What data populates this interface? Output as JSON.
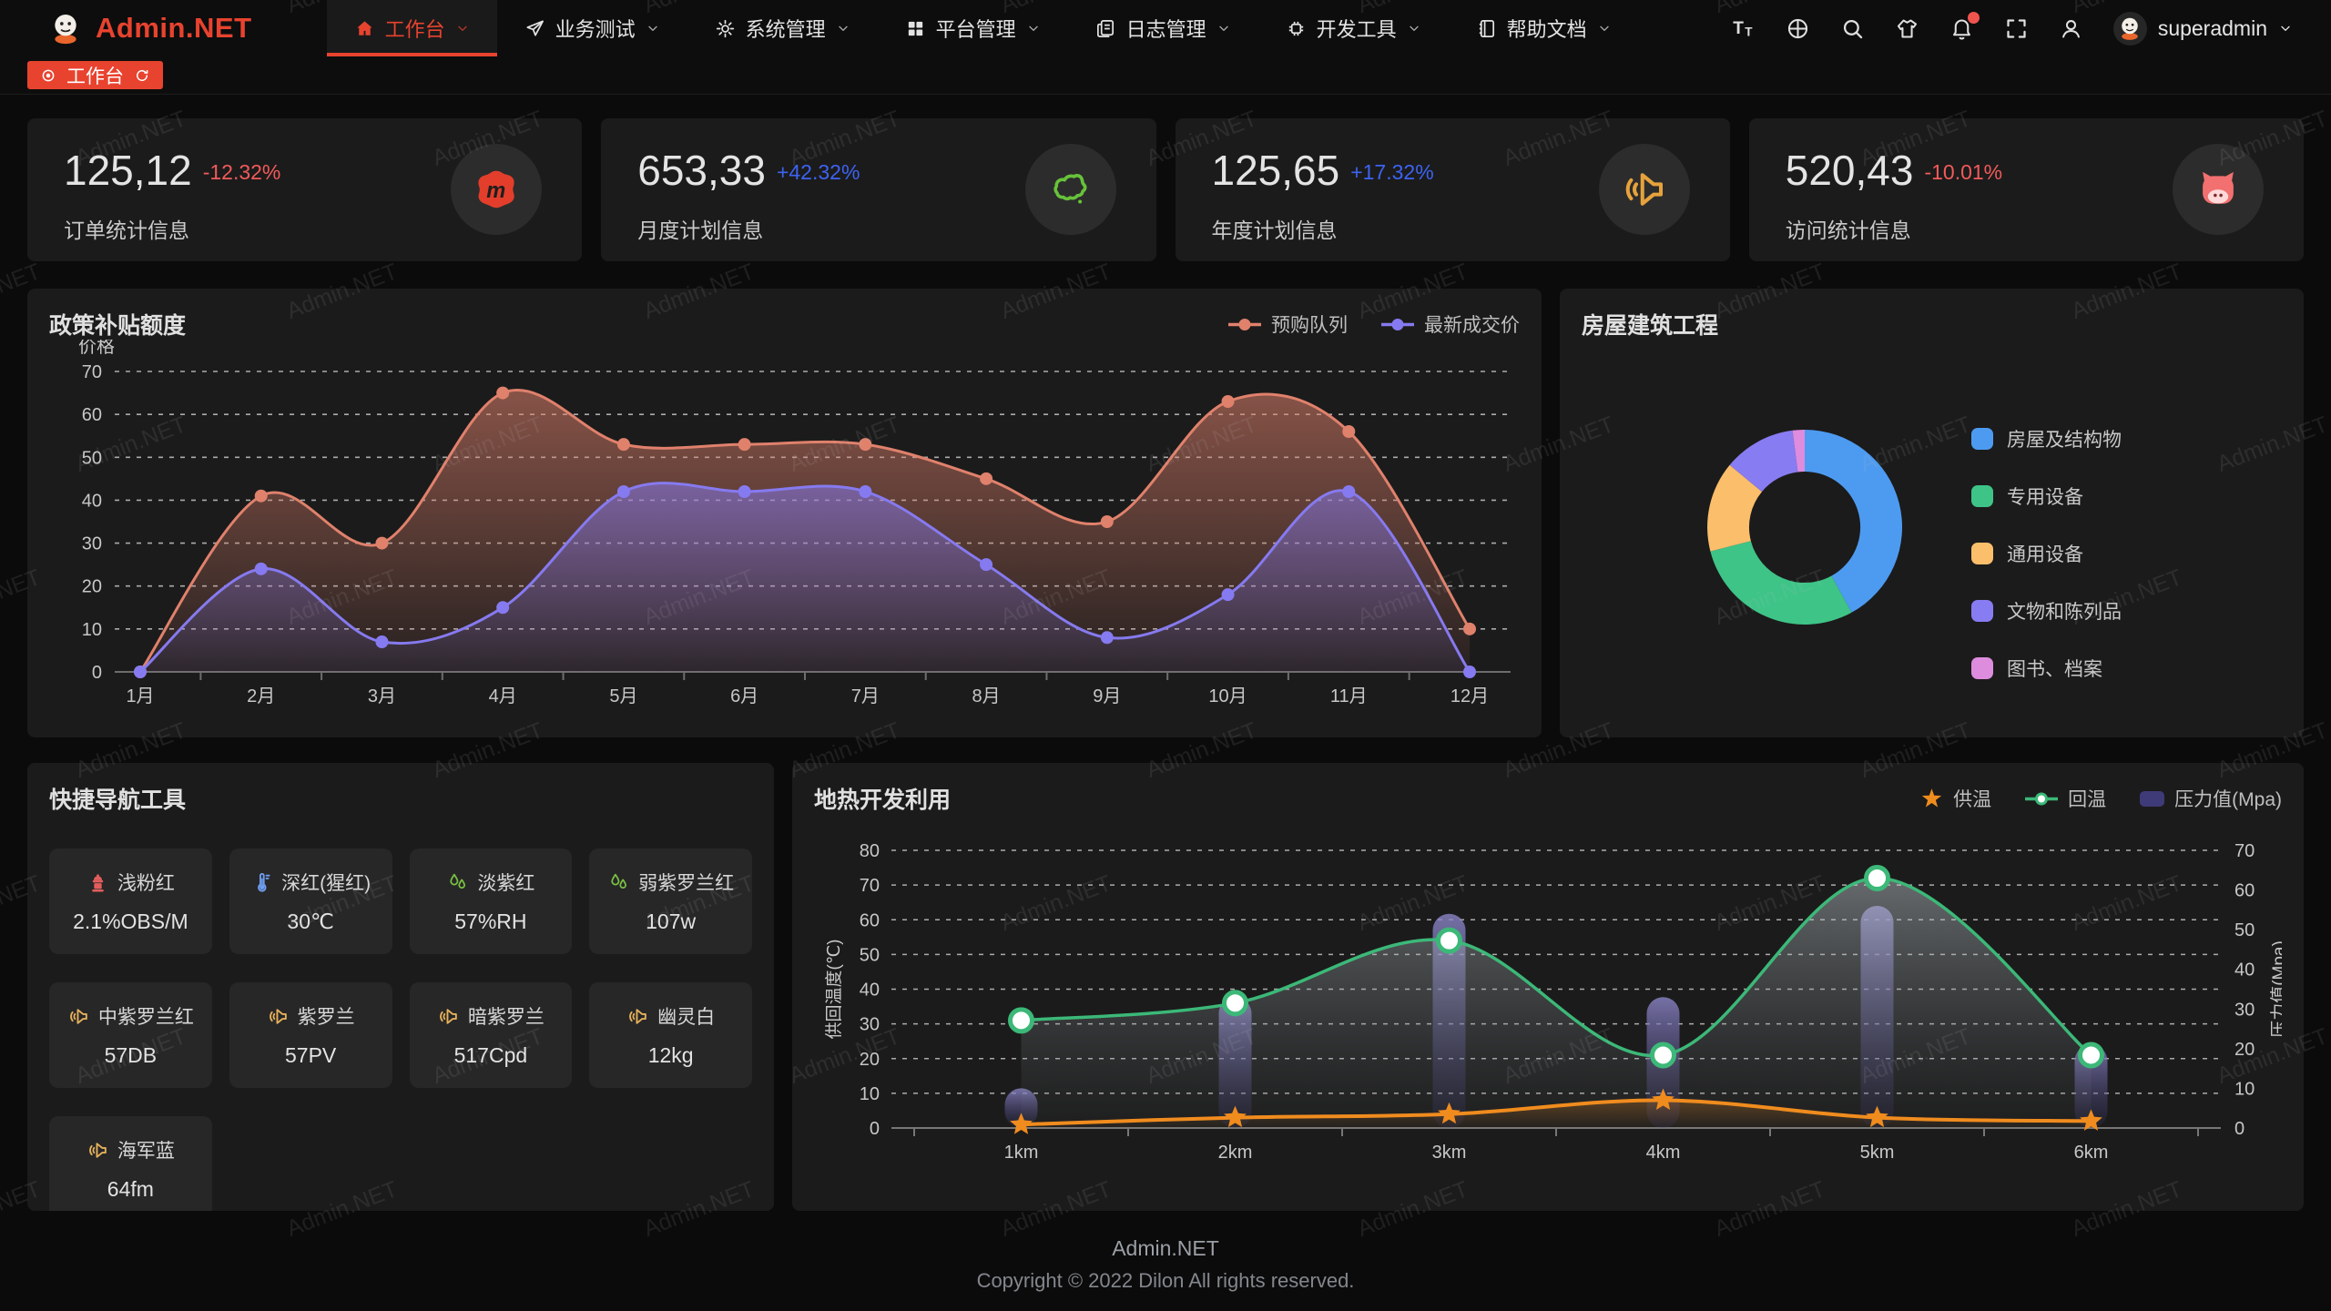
{
  "brand": {
    "title": "Admin.NET"
  },
  "colors": {
    "accent": "#e8432f",
    "delta_up": "#3d63f2",
    "delta_down": "#f25a5a"
  },
  "nav": {
    "items": [
      {
        "label": "工作台",
        "icon": "home-icon",
        "active": true
      },
      {
        "label": "业务测试",
        "icon": "send-icon",
        "active": false
      },
      {
        "label": "系统管理",
        "icon": "gear-icon",
        "active": false
      },
      {
        "label": "平台管理",
        "icon": "grid-icon",
        "active": false
      },
      {
        "label": "日志管理",
        "icon": "log-icon",
        "active": false
      },
      {
        "label": "开发工具",
        "icon": "chip-icon",
        "active": false
      },
      {
        "label": "帮助文档",
        "icon": "book-icon",
        "active": false
      }
    ],
    "right_icons": [
      "fontsize-icon",
      "globe-icon",
      "search-icon",
      "shirt-icon",
      "bell-icon",
      "fullscreen-icon",
      "user-icon"
    ],
    "notification_dot": true,
    "username": "superadmin"
  },
  "tabbar": {
    "tabs": [
      {
        "label": "工作台",
        "active": true
      }
    ]
  },
  "cards": [
    {
      "value": "125,12",
      "delta": "-12.32%",
      "trend": "down",
      "label": "订单统计信息",
      "icon": "meetup-icon",
      "icon_color": "#e23e2b"
    },
    {
      "value": "653,33",
      "delta": "+42.32%",
      "trend": "up",
      "label": "月度计划信息",
      "icon": "china-map-icon",
      "icon_color": "#67c23a"
    },
    {
      "value": "125,65",
      "delta": "+17.32%",
      "trend": "up",
      "label": "年度计划信息",
      "icon": "speaker-icon",
      "icon_color": "#e6a23c"
    },
    {
      "value": "520,43",
      "delta": "-10.01%",
      "trend": "down",
      "label": "访问统计信息",
      "icon": "cat-icon",
      "icon_color": "#f2706f"
    }
  ],
  "chart_data": [
    {
      "id": "subsidy",
      "type": "area",
      "title": "政策补贴额度",
      "ylabel": "价格",
      "ylim": [
        0,
        70
      ],
      "ytick": 10,
      "grid": "dashed",
      "legend_position": "top-right",
      "categories": [
        "1月",
        "2月",
        "3月",
        "4月",
        "5月",
        "6月",
        "7月",
        "8月",
        "9月",
        "10月",
        "11月",
        "12月"
      ],
      "series": [
        {
          "name": "预购队列",
          "color": "#e0816c",
          "values": [
            0,
            41,
            30,
            65,
            53,
            53,
            53,
            45,
            35,
            63,
            56,
            10
          ]
        },
        {
          "name": "最新成交价",
          "color": "#867af0",
          "values": [
            0,
            24,
            7,
            15,
            42,
            42,
            42,
            25,
            8,
            18,
            42,
            0
          ]
        }
      ]
    },
    {
      "id": "building",
      "type": "pie",
      "title": "房屋建筑工程",
      "donut": true,
      "legend_position": "right",
      "slices": [
        {
          "name": "房屋及结构物",
          "value": 42,
          "color": "#4d9bf0"
        },
        {
          "name": "专用设备",
          "value": 29,
          "color": "#3ec487"
        },
        {
          "name": "通用设备",
          "value": 15,
          "color": "#fbbe6b"
        },
        {
          "name": "文物和陈列品",
          "value": 12,
          "color": "#887cf2"
        },
        {
          "name": "图书、档案",
          "value": 2,
          "color": "#de8cde"
        }
      ]
    },
    {
      "id": "geothermal",
      "type": "line-bar",
      "title": "地热开发利用",
      "grid": "dashed",
      "legend_position": "top-right",
      "categories": [
        "1km",
        "2km",
        "3km",
        "4km",
        "5km",
        "6km"
      ],
      "left_axis": {
        "name": "供回温度(℃)",
        "min": 0,
        "max": 80,
        "step": 10
      },
      "right_axis": {
        "name": "压力值(Mpa)",
        "min": 0,
        "max": 70,
        "step": 10
      },
      "series": [
        {
          "name": "供温",
          "type": "line",
          "axis": "left",
          "marker": "star",
          "color": "#f08c1e",
          "values": [
            1,
            3,
            4,
            8,
            3,
            2
          ]
        },
        {
          "name": "回温",
          "type": "line",
          "axis": "left",
          "marker": "circle",
          "color": "#3cb878",
          "values": [
            31,
            36,
            54,
            21,
            72,
            21
          ]
        },
        {
          "name": "压力值(Mpa)",
          "type": "bar",
          "axis": "right",
          "color": "#3f3a78",
          "color_top": "#8d87c9",
          "values": [
            10,
            33,
            54,
            33,
            56,
            21
          ]
        }
      ]
    }
  ],
  "quick_nav": {
    "title": "快捷导航工具",
    "tiles": [
      {
        "icon": "hydrant-icon",
        "icon_color": "#e35d5d",
        "label": "浅粉红",
        "value": "2.1%OBS/M"
      },
      {
        "icon": "thermometer-icon",
        "icon_color": "#6f9ef0",
        "label": "深红(猩红)",
        "value": "30℃"
      },
      {
        "icon": "drops-icon",
        "icon_color": "#7ac143",
        "label": "淡紫红",
        "value": "57%RH"
      },
      {
        "icon": "drops-icon",
        "icon_color": "#7ac143",
        "label": "弱紫罗兰红",
        "value": "107w"
      },
      {
        "icon": "speaker-icon",
        "icon_color": "#e6b15c",
        "label": "中紫罗兰红",
        "value": "57DB"
      },
      {
        "icon": "speaker-icon",
        "icon_color": "#e6b15c",
        "label": "紫罗兰",
        "value": "57PV"
      },
      {
        "icon": "speaker-icon",
        "icon_color": "#e6b15c",
        "label": "暗紫罗兰",
        "value": "517Cpd"
      },
      {
        "icon": "speaker-icon",
        "icon_color": "#e6b15c",
        "label": "幽灵白",
        "value": "12kg"
      },
      {
        "icon": "speaker-icon",
        "icon_color": "#e6b15c",
        "label": "海军蓝",
        "value": "64fm"
      }
    ]
  },
  "footer": {
    "line1": "Admin.NET",
    "line2": "Copyright © 2022 Dilon All rights reserved."
  },
  "watermark": {
    "text": "Admin.NET"
  }
}
